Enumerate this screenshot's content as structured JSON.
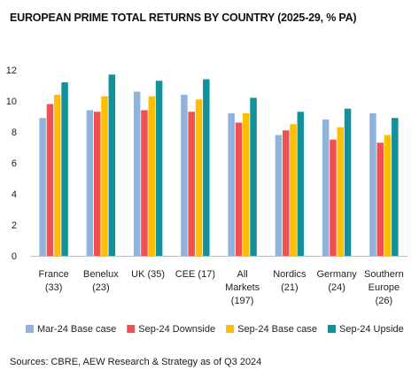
{
  "title": "EUROPEAN PRIME TOTAL RETURNS BY COUNTRY (2025-29, % PA)",
  "source": "Sources: CBRE, AEW Research & Strategy as of Q3 2024",
  "chart_data": {
    "type": "bar",
    "title": "EUROPEAN PRIME TOTAL RETURNS BY COUNTRY (2025-29, % PA)",
    "categories": [
      [
        "France",
        "(33)"
      ],
      [
        "Benelux",
        "(23)"
      ],
      [
        "UK (35)"
      ],
      [
        "CEE (17)"
      ],
      [
        "All",
        "Markets",
        "(197)"
      ],
      [
        "Nordics",
        "(21)"
      ],
      [
        "Germany",
        "(24)"
      ],
      [
        "Southern",
        "Europe",
        "(26)"
      ]
    ],
    "ylim": [
      0,
      12
    ],
    "yticks": [
      0,
      2,
      4,
      6,
      8,
      10,
      12
    ],
    "grid": false,
    "legend_position": "bottom",
    "series": [
      {
        "name": "Mar-24 Base case",
        "color": "#8fb3dd",
        "values": [
          8.9,
          9.4,
          10.6,
          10.4,
          9.2,
          7.8,
          8.8,
          9.2
        ]
      },
      {
        "name": "Sep-24 Downside",
        "color": "#f0504f",
        "values": [
          9.8,
          9.3,
          9.4,
          9.3,
          8.6,
          8.1,
          7.5,
          7.3
        ]
      },
      {
        "name": "Sep-24 Base case",
        "color": "#ffbf00",
        "values": [
          10.4,
          10.3,
          10.3,
          10.1,
          9.2,
          8.5,
          8.3,
          7.8
        ]
      },
      {
        "name": "Sep-24 Upside",
        "color": "#11919a",
        "values": [
          11.2,
          11.7,
          11.3,
          11.4,
          10.2,
          9.3,
          9.5,
          8.9
        ]
      }
    ]
  }
}
